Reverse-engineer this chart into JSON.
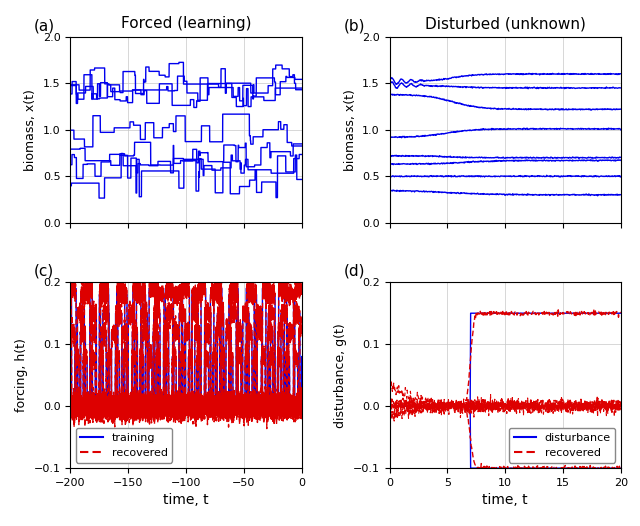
{
  "title_a": "Forced (learning)",
  "title_b": "Disturbed (unknown)",
  "label_a": "(a)",
  "label_b": "(b)",
  "label_c": "(c)",
  "label_d": "(d)",
  "blue": "#0000EE",
  "red": "#DD0000",
  "bg_color": "#ffffff",
  "ylabel_ab": "biomass, x(t)",
  "ylabel_c": "forcing, h(t)",
  "ylabel_d": "disturbance, g(t)",
  "xlabel_cd": "time, t",
  "ylim_ab": [
    0,
    2
  ],
  "ylim_c": [
    -0.1,
    0.2
  ],
  "ylim_d": [
    -0.1,
    0.2
  ],
  "xticks_left": [
    -200,
    -150,
    -100,
    -50,
    0
  ],
  "xticks_right": [
    0,
    5,
    10,
    15,
    20
  ],
  "yticks_ab": [
    0,
    0.5,
    1.0,
    1.5,
    2.0
  ],
  "yticks_cd": [
    -0.1,
    0,
    0.1,
    0.2
  ],
  "legend_c": [
    "training",
    "recovered"
  ],
  "legend_d": [
    "disturbance",
    "recovered"
  ],
  "grid_color": "#c8c8c8",
  "title_fontsize": 11,
  "label_fontsize": 11,
  "axis_fontsize": 9,
  "xlabel_fontsize": 10,
  "tick_fontsize": 8
}
